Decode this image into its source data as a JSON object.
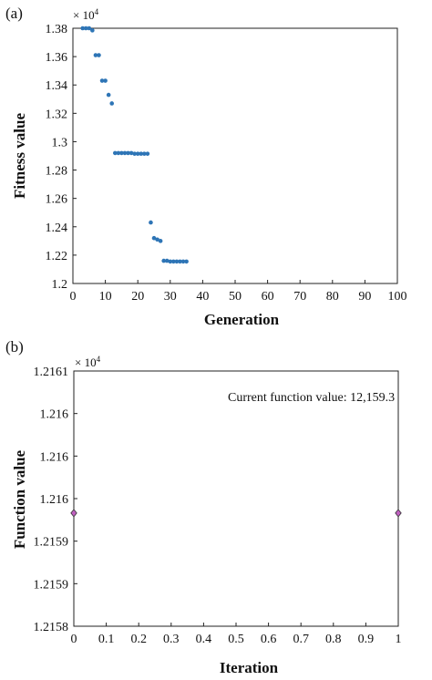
{
  "chart_data": [
    {
      "type": "scatter",
      "panel_label": "(a)",
      "xlabel": "Generation",
      "ylabel": "Fitness value",
      "y_multiplier": "× 10",
      "y_multiplier_exp": "4",
      "xlim": [
        0,
        100
      ],
      "ylim": [
        1.2,
        1.38
      ],
      "xticks": [
        0,
        10,
        20,
        30,
        40,
        50,
        60,
        70,
        80,
        90,
        100
      ],
      "xtick_labels": [
        "0",
        "10",
        "20",
        "30",
        "40",
        "50",
        "60",
        "70",
        "80",
        "90",
        "100"
      ],
      "yticks": [
        1.2,
        1.22,
        1.24,
        1.26,
        1.28,
        1.3,
        1.32,
        1.34,
        1.36,
        1.38
      ],
      "ytick_labels": [
        "1.2",
        "1.22",
        "1.24",
        "1.26",
        "1.28",
        "1.3",
        "1.32",
        "1.34",
        "1.36",
        "1.38"
      ],
      "marker_color": "#2e75b6",
      "points": [
        [
          3,
          1.38
        ],
        [
          4,
          1.38
        ],
        [
          5,
          1.38
        ],
        [
          6,
          1.3785
        ],
        [
          7,
          1.361
        ],
        [
          8,
          1.361
        ],
        [
          9,
          1.343
        ],
        [
          10,
          1.343
        ],
        [
          11,
          1.333
        ],
        [
          12,
          1.327
        ],
        [
          13,
          1.292
        ],
        [
          14,
          1.292
        ],
        [
          15,
          1.292
        ],
        [
          16,
          1.292
        ],
        [
          17,
          1.292
        ],
        [
          18,
          1.292
        ],
        [
          19,
          1.2915
        ],
        [
          20,
          1.2915
        ],
        [
          21,
          1.2915
        ],
        [
          22,
          1.2915
        ],
        [
          23,
          1.2915
        ],
        [
          24,
          1.243
        ],
        [
          25,
          1.232
        ],
        [
          26,
          1.231
        ],
        [
          27,
          1.23
        ],
        [
          28,
          1.216
        ],
        [
          29,
          1.216
        ],
        [
          30,
          1.2155
        ],
        [
          31,
          1.2155
        ],
        [
          32,
          1.2155
        ],
        [
          33,
          1.2155
        ],
        [
          34,
          1.2155
        ],
        [
          35,
          1.2155
        ]
      ]
    },
    {
      "type": "scatter",
      "panel_label": "(b)",
      "xlabel": "Iteration",
      "ylabel": "Function value",
      "y_multiplier": "× 10",
      "y_multiplier_exp": "4",
      "annotation": "Current function value: 12,159.3",
      "xlim": [
        0,
        1
      ],
      "ylim": [
        1.2158,
        1.2161
      ],
      "xticks": [
        0,
        0.1,
        0.2,
        0.3,
        0.4,
        0.5,
        0.6,
        0.7,
        0.8,
        0.9,
        1
      ],
      "xtick_labels": [
        "0",
        "0.1",
        "0.2",
        "0.3",
        "0.4",
        "0.5",
        "0.6",
        "0.7",
        "0.8",
        "0.9",
        "1"
      ],
      "yticks": [
        1.2158,
        1.21585,
        1.2159,
        1.21595,
        1.216,
        1.21605,
        1.2161
      ],
      "ytick_labels": [
        "1.2158",
        "1.2159",
        "1.2159",
        "1.216",
        "1.216",
        "1.216",
        "1.2161"
      ],
      "marker_color": "#c060c0",
      "points": [
        [
          0,
          1.215933
        ],
        [
          1,
          1.215933
        ]
      ]
    }
  ]
}
